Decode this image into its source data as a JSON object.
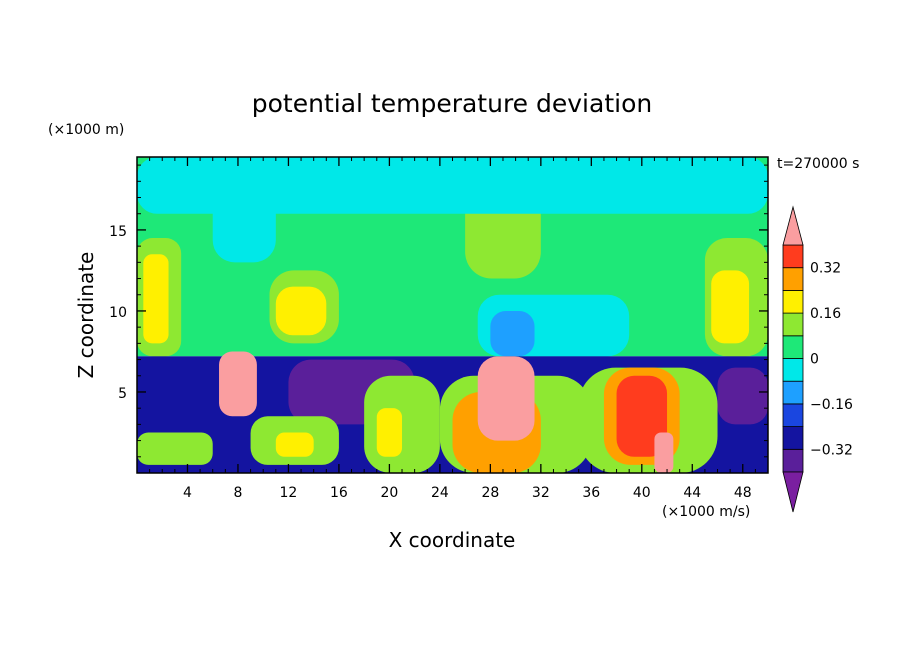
{
  "chart_data": {
    "type": "heatmap",
    "title": "potential temperature deviation",
    "xlabel": "X coordinate",
    "ylabel": "Z coordinate",
    "x_unit": "(×1000 m/s)",
    "y_unit": "(×1000 m)",
    "time_label": "t=270000 s",
    "x_ticks": [
      4,
      8,
      12,
      16,
      20,
      24,
      28,
      32,
      36,
      40,
      44,
      48
    ],
    "y_ticks": [
      5,
      10,
      15
    ],
    "xlim": [
      0,
      50
    ],
    "ylim": [
      0,
      19.5
    ],
    "colorbar": {
      "levels": [
        -0.4,
        -0.32,
        -0.24,
        -0.16,
        -0.08,
        0,
        0.08,
        0.16,
        0.24,
        0.32,
        0.4
      ],
      "tick_labels": [
        "0.32",
        "0.16",
        "0",
        "−0.16",
        "−0.32"
      ],
      "tick_values": [
        0.32,
        0.16,
        0,
        -0.16,
        -0.32
      ],
      "colors": {
        "below": "#7a1fa0",
        "-0.40": "#5a1f9a",
        "-0.32": "#1414a0",
        "-0.24": "#1a46e0",
        "-0.16": "#1ea0ff",
        "-0.08": "#00e8e8",
        "0.00": "#1ee878",
        "0.08": "#8ee832",
        "0.16": "#fff000",
        "0.24": "#ffa000",
        "0.32": "#ff3c1e",
        "above": "#fa9ea0"
      }
    },
    "field_regions": [
      {
        "level": 0.0,
        "x": [
          0,
          50
        ],
        "z": [
          7.2,
          19.5
        ],
        "note": "upper background"
      },
      {
        "level": 0.08,
        "x": [
          0,
          3.5
        ],
        "z": [
          7.2,
          14.5
        ]
      },
      {
        "level": 0.16,
        "x": [
          0.5,
          2.5
        ],
        "z": [
          8,
          13.5
        ]
      },
      {
        "level": 0.08,
        "x": [
          45,
          50
        ],
        "z": [
          7.2,
          14.5
        ]
      },
      {
        "level": 0.16,
        "x": [
          45.5,
          48.5
        ],
        "z": [
          8,
          12.5
        ]
      },
      {
        "level": 0.08,
        "x": [
          10.5,
          16
        ],
        "z": [
          8,
          12.5
        ]
      },
      {
        "level": 0.16,
        "x": [
          11,
          15
        ],
        "z": [
          8.5,
          11.5
        ]
      },
      {
        "level": 0.08,
        "x": [
          26,
          32
        ],
        "z": [
          12,
          19
        ]
      },
      {
        "level": -0.08,
        "x": [
          27,
          39
        ],
        "z": [
          7.2,
          11
        ]
      },
      {
        "level": -0.16,
        "x": [
          28,
          31.5
        ],
        "z": [
          7.2,
          10
        ]
      },
      {
        "level": -0.08,
        "x": [
          6,
          11
        ],
        "z": [
          13,
          18
        ]
      },
      {
        "level": -0.32,
        "x": [
          0,
          50
        ],
        "z": [
          0,
          7.2
        ],
        "note": "lower background"
      },
      {
        "level": -0.4,
        "x": [
          12,
          22
        ],
        "z": [
          3,
          7
        ]
      },
      {
        "level": -0.4,
        "x": [
          46,
          50
        ],
        "z": [
          3,
          6.5
        ]
      },
      {
        "level": 0.08,
        "x": [
          0,
          6
        ],
        "z": [
          0.5,
          2.5
        ]
      },
      {
        "level": 0.08,
        "x": [
          9,
          16
        ],
        "z": [
          0.5,
          3.5
        ]
      },
      {
        "level": 0.16,
        "x": [
          11,
          14
        ],
        "z": [
          1,
          2.5
        ]
      },
      {
        "level": 0.08,
        "x": [
          18,
          24
        ],
        "z": [
          0,
          6
        ]
      },
      {
        "level": 0.16,
        "x": [
          19,
          21
        ],
        "z": [
          1,
          4
        ]
      },
      {
        "level": 0.08,
        "x": [
          24,
          36
        ],
        "z": [
          0,
          6
        ]
      },
      {
        "level": 0.24,
        "x": [
          25,
          32
        ],
        "z": [
          0,
          5
        ]
      },
      {
        "level": 0.4,
        "x": [
          27,
          31.5
        ],
        "z": [
          2,
          7.2
        ],
        "note": "above 0.32"
      },
      {
        "level": 0.08,
        "x": [
          35,
          46
        ],
        "z": [
          0,
          6.5
        ]
      },
      {
        "level": 0.24,
        "x": [
          37,
          43
        ],
        "z": [
          0.5,
          6.5
        ]
      },
      {
        "level": 0.32,
        "x": [
          38,
          42
        ],
        "z": [
          1,
          6
        ]
      },
      {
        "level": 0.4,
        "x": [
          41,
          42.5
        ],
        "z": [
          0,
          2.5
        ]
      },
      {
        "level": 0.4,
        "x": [
          6.5,
          9.5
        ],
        "z": [
          3.5,
          7.5
        ]
      },
      {
        "level": -0.08,
        "x": [
          0,
          50
        ],
        "z": [
          16,
          19.5
        ],
        "note": "top cyan streaks"
      }
    ]
  }
}
